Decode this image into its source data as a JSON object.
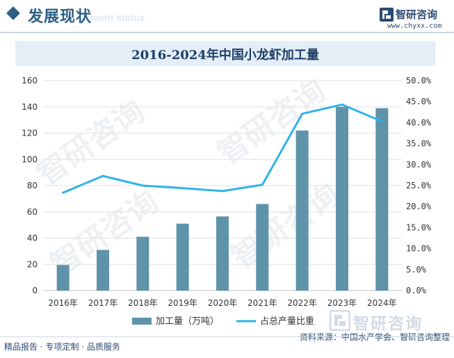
{
  "header": {
    "section_title": "发展现状",
    "section_title_en": "ment status",
    "brand_name": "智研咨询",
    "brand_url": "www.chyxx.com"
  },
  "watermark": "智研咨询",
  "chart_data": {
    "type": "bar",
    "title": "2016-2024年中国小龙虾加工量",
    "categories": [
      "2016年",
      "2017年",
      "2018年",
      "2019年",
      "2020年",
      "2021年",
      "2022年",
      "2023年",
      "2024年"
    ],
    "series": [
      {
        "name": "加工量（万吨）",
        "type": "bar",
        "axis": "left",
        "color": "#5f93aa",
        "values": [
          19.5,
          31,
          41,
          51,
          56.5,
          66,
          122,
          140,
          139
        ]
      },
      {
        "name": "占总产量比重",
        "type": "line",
        "axis": "right",
        "color": "#2eb3ec",
        "values": [
          0.233,
          0.273,
          0.25,
          0.244,
          0.237,
          0.252,
          0.421,
          0.443,
          0.403
        ]
      }
    ],
    "y_left": {
      "min": 0,
      "max": 160,
      "ticks": [
        "0",
        "20",
        "40",
        "60",
        "80",
        "100",
        "120",
        "140",
        "160"
      ]
    },
    "y_right": {
      "min": 0,
      "max": 0.5,
      "ticks": [
        "0.0%",
        "5.0%",
        "10.0%",
        "15.0%",
        "20.0%",
        "25.0%",
        "30.0%",
        "35.0%",
        "40.0%",
        "45.0%",
        "50.0%"
      ]
    },
    "grid": true,
    "legend_position": "bottom"
  },
  "source": "资料来源：中国水产学会、智研咨询整理",
  "footer": "精品报告 · 专项定制 · 品质服务",
  "bottom_brand": "智研咨询"
}
